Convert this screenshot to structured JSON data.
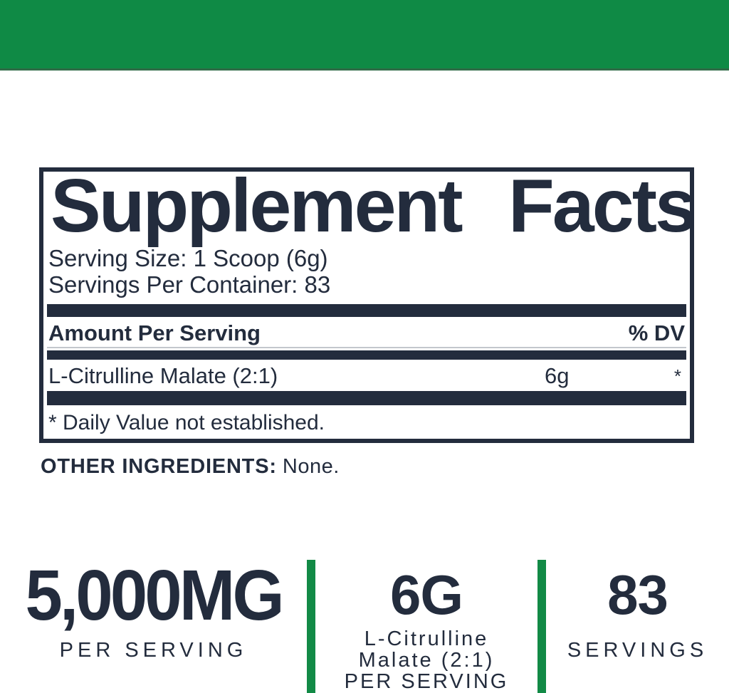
{
  "colors": {
    "accent_green": "#0F8A45",
    "divider_green": "#128A46",
    "text_navy": "#232C3D"
  },
  "supplement_facts": {
    "title": "Supplement Facts",
    "serving_size": "Serving Size: 1 Scoop (6g)",
    "servings_per_container": "Servings Per Container: 83",
    "amount_per_serving_label": "Amount Per Serving",
    "dv_header": "% DV",
    "rows": [
      {
        "name": "L-Citrulline Malate (2:1)",
        "amount": "6g",
        "dv": "*"
      }
    ],
    "footnote": "* Daily Value not established."
  },
  "other_ingredients": {
    "label": "OTHER INGREDIENTS:",
    "value": "None."
  },
  "stats": [
    {
      "value": "5,000MG",
      "lines": [
        "PER SERVING"
      ]
    },
    {
      "value": "6G",
      "lines": [
        "L-Citrulline",
        "Malate (2:1)",
        "PER SERVING"
      ]
    },
    {
      "value": "83",
      "lines": [
        "SERVINGS"
      ]
    }
  ]
}
